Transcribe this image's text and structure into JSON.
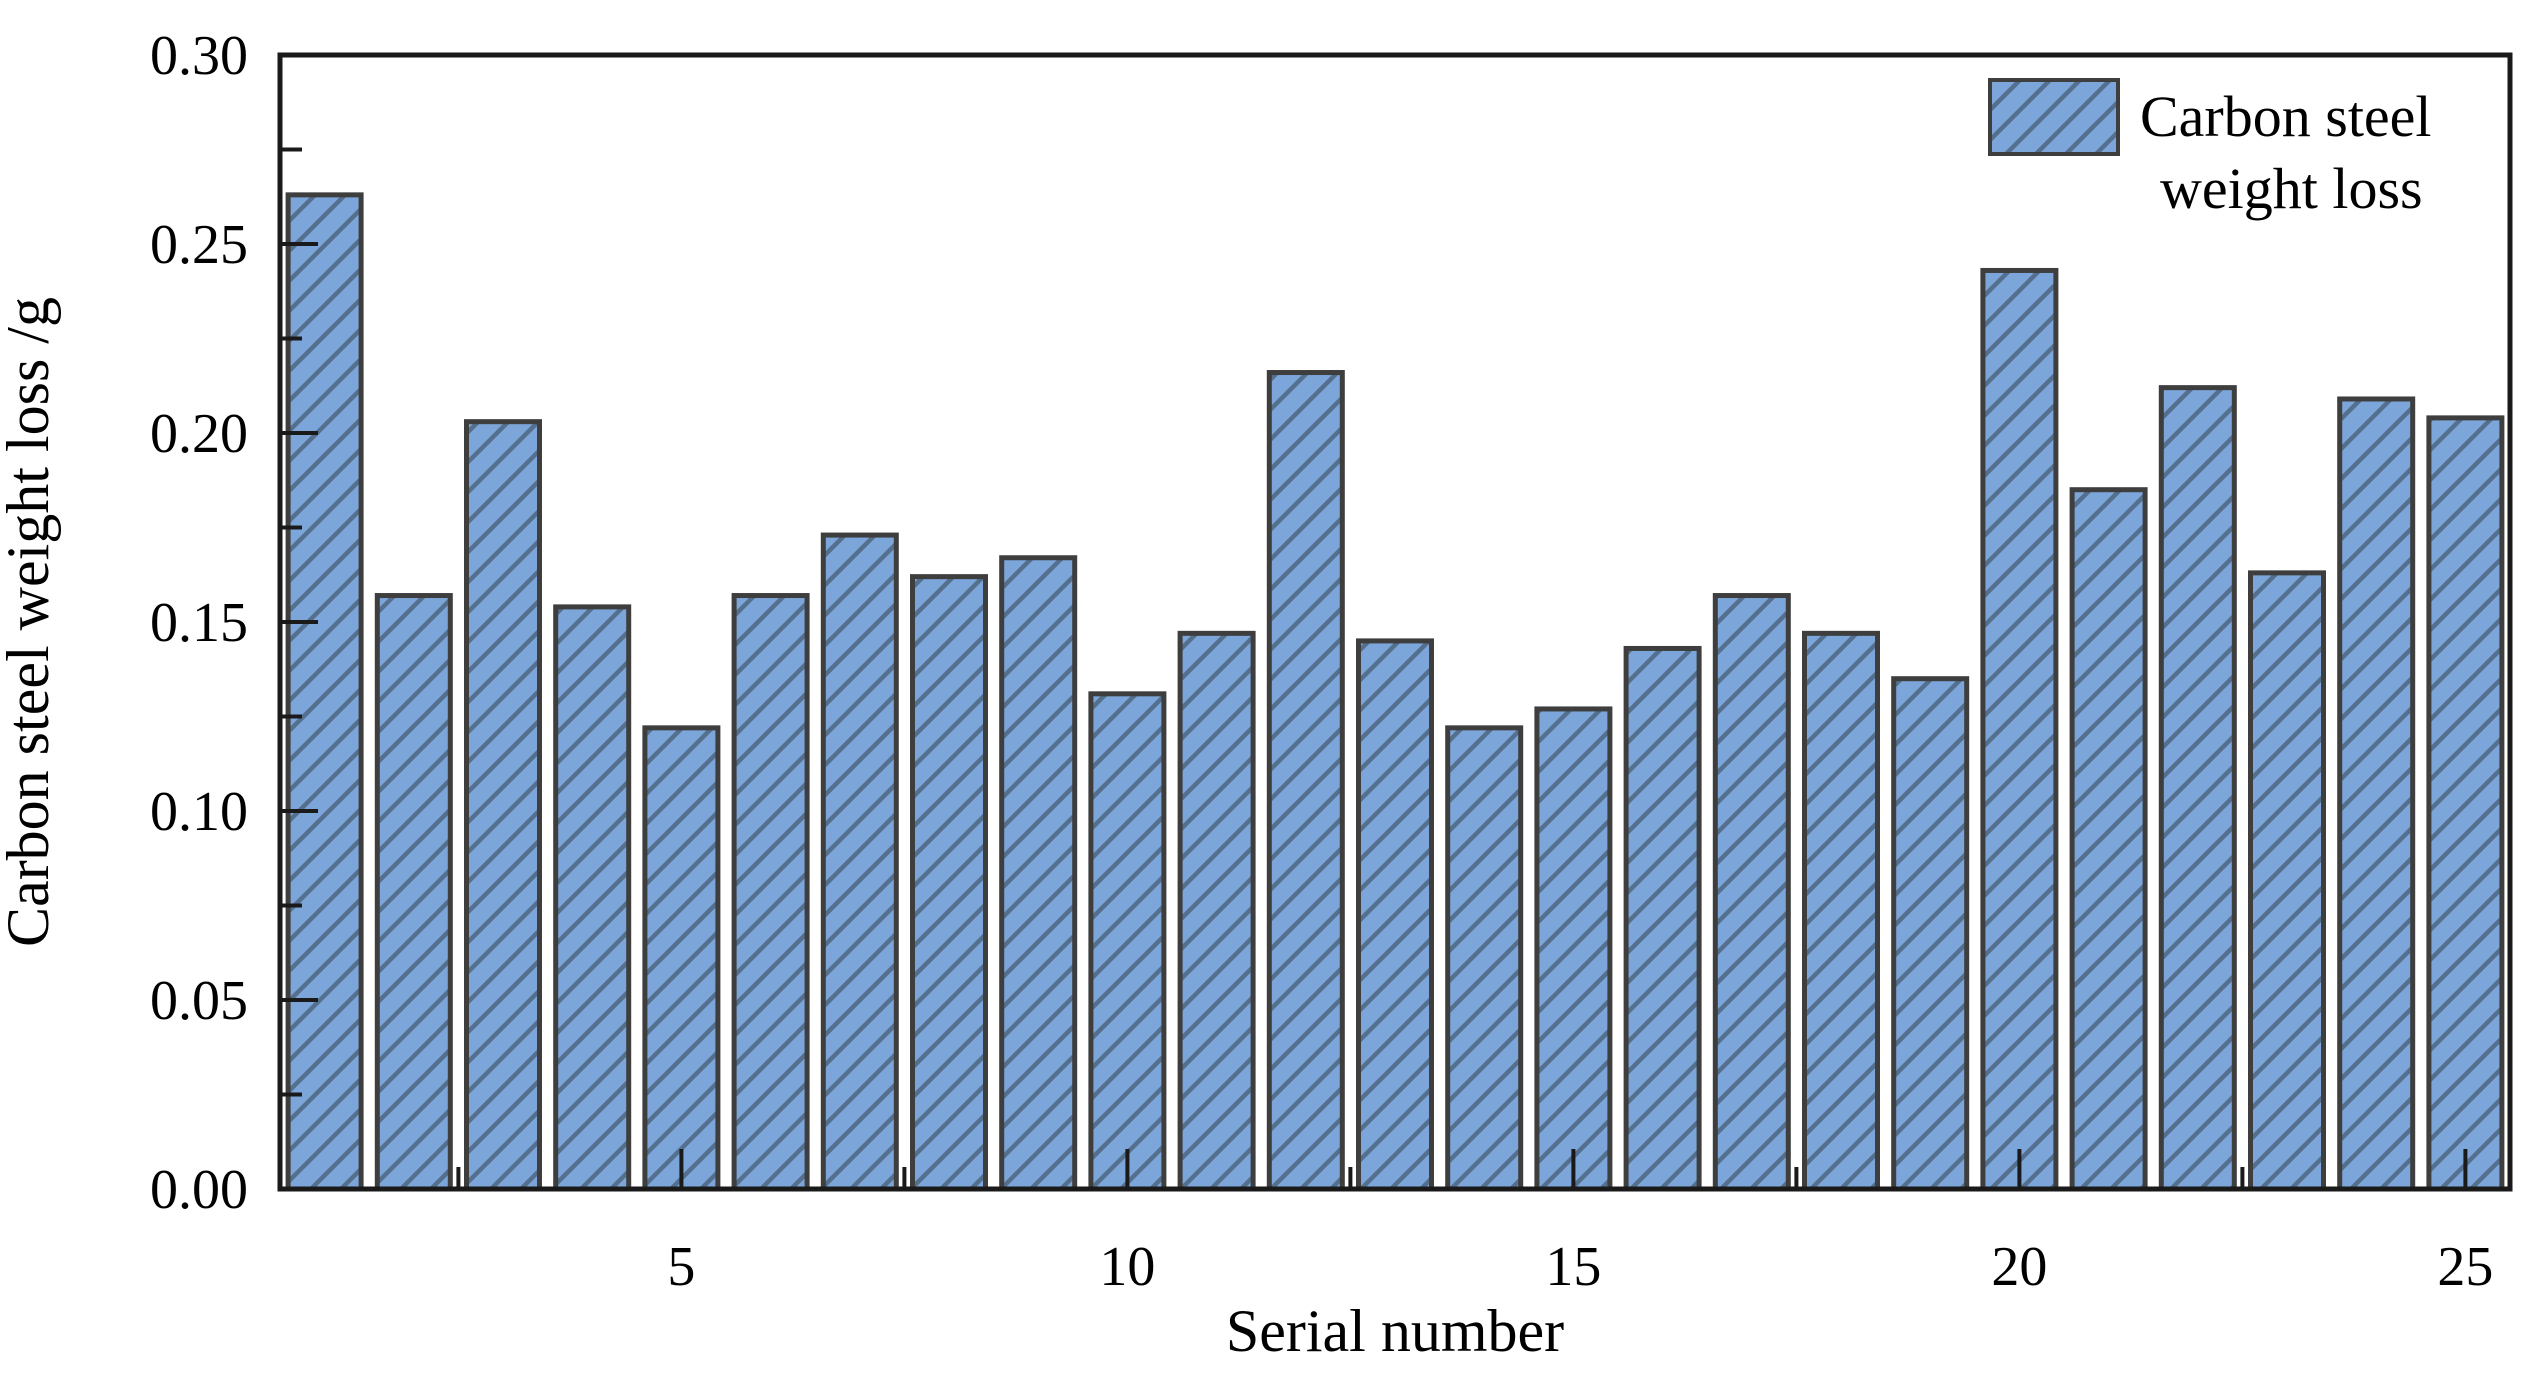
{
  "figure": {
    "background": "#ffffff"
  },
  "chart_data": {
    "type": "bar",
    "title": "",
    "xlabel": "Serial number",
    "ylabel": "Carbon steel weight loss /g",
    "legend": {
      "lines": [
        "Carbon steel",
        "weight loss"
      ],
      "position": "top-right",
      "swatch": "blue-hatched-rect"
    },
    "x": [
      1,
      2,
      3,
      4,
      5,
      6,
      7,
      8,
      9,
      10,
      11,
      12,
      13,
      14,
      15,
      16,
      17,
      18,
      19,
      20,
      21,
      22,
      23,
      24,
      25
    ],
    "values": [
      0.263,
      0.157,
      0.203,
      0.154,
      0.122,
      0.157,
      0.173,
      0.162,
      0.167,
      0.131,
      0.147,
      0.216,
      0.145,
      0.122,
      0.127,
      0.143,
      0.157,
      0.147,
      0.135,
      0.243,
      0.185,
      0.212,
      0.163,
      0.209,
      0.204
    ],
    "xlim": [
      0.5,
      25.5
    ],
    "ylim": [
      0.0,
      0.3
    ],
    "ytick_labels": [
      "0.00",
      "0.05",
      "0.10",
      "0.15",
      "0.20",
      "0.25",
      "0.30"
    ],
    "ytick_values": [
      0.0,
      0.05,
      0.1,
      0.15,
      0.2,
      0.25,
      0.3
    ],
    "ytick_minor_values": [
      0.025,
      0.075,
      0.125,
      0.175,
      0.225,
      0.275
    ],
    "xticks_major": [
      5,
      10,
      15,
      20,
      25
    ],
    "xtick_major_labels": [
      "5",
      "10",
      "15",
      "20",
      "25"
    ],
    "xticks_minor": [
      2.5,
      7.5,
      12.5,
      17.5,
      22.5
    ],
    "grid": false,
    "hatch_style": "diagonal-forward",
    "colors": {
      "bar_fill": "#7CA5D9",
      "bar_hatch": "#54708E",
      "bar_edge": "#3E3E3E",
      "axis": "#1A1A1A",
      "text": "#000000"
    }
  }
}
